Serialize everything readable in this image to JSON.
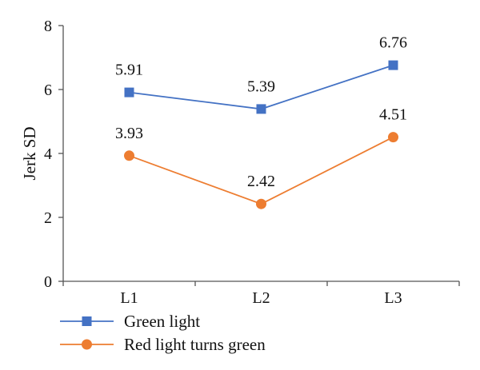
{
  "chart_data": {
    "type": "line",
    "categories": [
      "L1",
      "L2",
      "L3"
    ],
    "series": [
      {
        "name": "Green light",
        "values": [
          5.91,
          5.39,
          6.76
        ],
        "color": "#4472C4",
        "marker": "square"
      },
      {
        "name": "Red light turns green",
        "values": [
          3.93,
          2.42,
          4.51
        ],
        "color": "#ED7D31",
        "marker": "circle"
      }
    ],
    "data_labels": [
      [
        "5.91",
        "5.39",
        "6.76"
      ],
      [
        "3.93",
        "2.42",
        "4.51"
      ]
    ],
    "title": "",
    "xlabel": "",
    "ylabel": "Jerk SD",
    "ylim": [
      0,
      8
    ],
    "yticks": [
      0,
      2,
      4,
      6,
      8
    ],
    "ytick_labels": [
      "0",
      "2",
      "4",
      "6",
      "8"
    ],
    "grid": false,
    "legend_position": "bottom-left"
  }
}
